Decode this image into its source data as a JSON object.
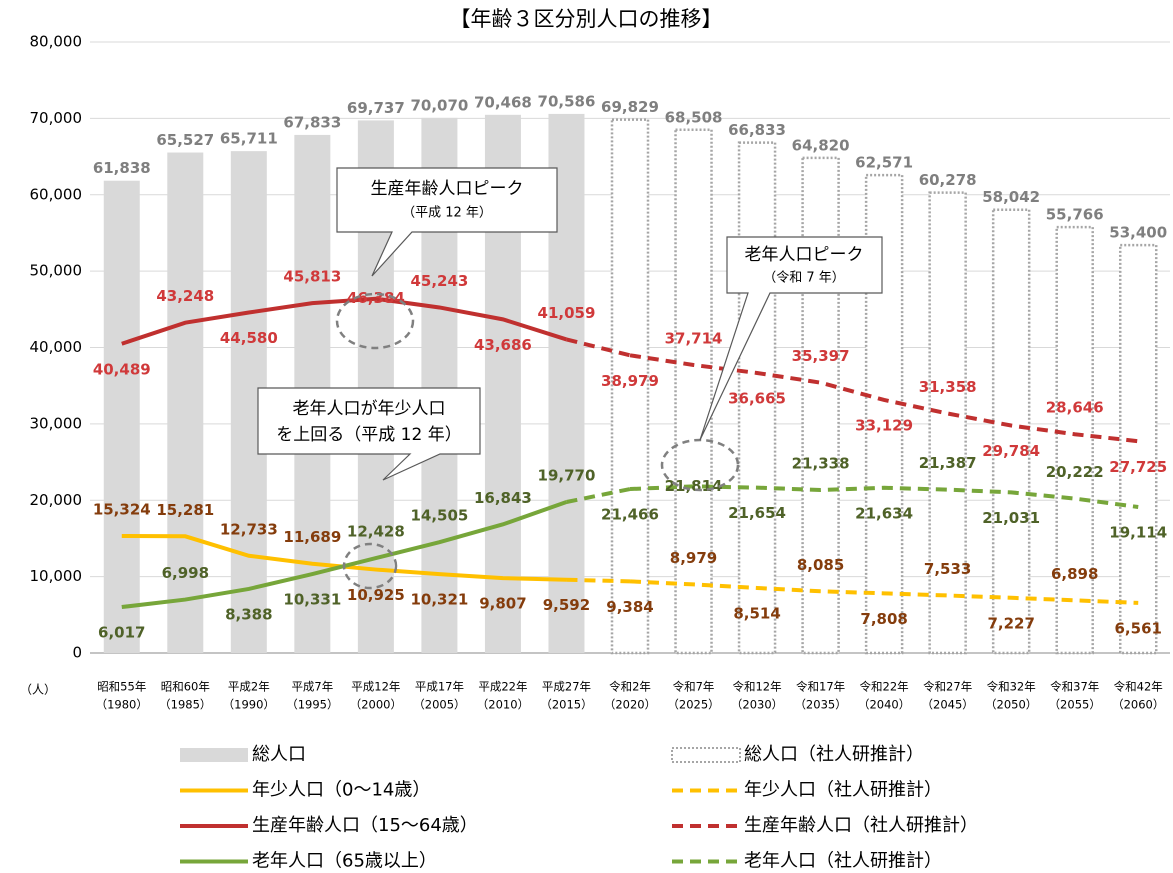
{
  "chart_data": {
    "type": "bar-line",
    "title": "【年齢３区分別人口の推移】",
    "y_unit": "（人）",
    "categories": [
      "昭和55年",
      "昭和60年",
      "平成2年",
      "平成7年",
      "平成12年",
      "平成17年",
      "平成22年",
      "平成27年",
      "令和2年",
      "令和7年",
      "令和12年",
      "令和17年",
      "令和22年",
      "令和27年",
      "令和32年",
      "令和37年",
      "令和42年"
    ],
    "category_sublabels": [
      "（1980）",
      "（1985）",
      "（1990）",
      "（1995）",
      "（2000）",
      "（2005）",
      "（2010）",
      "（2015）",
      "（2020）",
      "（2025）",
      "（2030）",
      "（2035）",
      "（2040）",
      "（2045）",
      "（2050）",
      "（2055）",
      "（2060）"
    ],
    "ylim": [
      0,
      80000
    ],
    "yticks": [
      0,
      {
        "value": 10000,
        "label": "10,000"
      },
      {
        "value": 20000,
        "label": "20,000"
      },
      {
        "value": 30000,
        "label": "30,000"
      },
      {
        "value": 40000,
        "label": "40,000"
      },
      {
        "value": 50000,
        "label": "50,000"
      },
      {
        "value": 60000,
        "label": "60,000"
      },
      {
        "value": 70000,
        "label": "70,000"
      },
      {
        "value": 80000,
        "label": "80,000"
      }
    ],
    "series": [
      {
        "name": "総人口",
        "kind": "bar",
        "dashed": false,
        "color": "#d9d9d9",
        "label_color": "#7f7f7f",
        "values": [
          61838,
          65527,
          65711,
          67833,
          69737,
          70070,
          70468,
          70586,
          null,
          null,
          null,
          null,
          null,
          null,
          null,
          null,
          null
        ],
        "value_labels": [
          "61,838",
          "65,527",
          "65,711",
          "67,833",
          "69,737",
          "70,070",
          "70,468",
          "70,586",
          null,
          null,
          null,
          null,
          null,
          null,
          null,
          null,
          null
        ]
      },
      {
        "name": "総人口（社人研推計）",
        "kind": "bar",
        "dashed": true,
        "color": "#a6a6a6",
        "label_color": "#7f7f7f",
        "values": [
          null,
          null,
          null,
          null,
          null,
          null,
          null,
          null,
          69829,
          68508,
          66833,
          64820,
          62571,
          60278,
          58042,
          55766,
          53400
        ],
        "value_labels": [
          null,
          null,
          null,
          null,
          null,
          null,
          null,
          null,
          "69,829",
          "68,508",
          "66,833",
          "64,820",
          "62,571",
          "60,278",
          "58,042",
          "55,766",
          "53,400"
        ]
      },
      {
        "name": "年少人口（0～14歳）",
        "kind": "line",
        "dashed": false,
        "color": "#ffc000",
        "label_color": "#843c0c",
        "values": [
          15324,
          15281,
          12733,
          11689,
          10925,
          10321,
          9807,
          9592,
          null,
          null,
          null,
          null,
          null,
          null,
          null,
          null,
          null
        ],
        "value_labels": [
          "15,324",
          "15,281",
          "12,733",
          "11,689",
          "10,925",
          "10,321",
          "9,807",
          "9,592",
          null,
          null,
          null,
          null,
          null,
          null,
          null,
          null,
          null
        ]
      },
      {
        "name": "年少人口（社人研推計）",
        "kind": "line",
        "dashed": true,
        "color": "#ffc000",
        "label_color": "#843c0c",
        "values": [
          null,
          null,
          null,
          null,
          null,
          null,
          null,
          null,
          9384,
          8979,
          8514,
          8085,
          7808,
          7533,
          7227,
          6898,
          6561
        ],
        "value_labels": [
          null,
          null,
          null,
          null,
          null,
          null,
          null,
          null,
          "9,384",
          "8,979",
          "8,514",
          "8,085",
          "7,808",
          "7,533",
          "7,227",
          "6,898",
          "6,561"
        ]
      },
      {
        "name": "生産年齢人口（15～64歳）",
        "kind": "line",
        "dashed": false,
        "color": "#c0302f",
        "label_color": "#d0393a",
        "values": [
          40489,
          43248,
          44580,
          45813,
          46384,
          45243,
          43686,
          41059,
          null,
          null,
          null,
          null,
          null,
          null,
          null,
          null,
          null
        ],
        "value_labels": [
          "40,489",
          "43,248",
          "44,580",
          "45,813",
          "46,384",
          "45,243",
          "43,686",
          "41,059",
          null,
          null,
          null,
          null,
          null,
          null,
          null,
          null,
          null
        ]
      },
      {
        "name": "生産年齢人口（社人研推計）",
        "kind": "line",
        "dashed": true,
        "color": "#c0302f",
        "label_color": "#d0393a",
        "values": [
          null,
          null,
          null,
          null,
          null,
          null,
          null,
          null,
          38979,
          37714,
          36665,
          35397,
          33129,
          31358,
          29784,
          28646,
          27725
        ],
        "value_labels": [
          null,
          null,
          null,
          null,
          null,
          null,
          null,
          null,
          "38,979",
          "37,714",
          "36,665",
          "35,397",
          "33,129",
          "31,358",
          "29,784",
          "28,646",
          "27,725"
        ]
      },
      {
        "name": "老年人口（65歳以上）",
        "kind": "line",
        "dashed": false,
        "color": "#77a63a",
        "label_color": "#4f6228",
        "values": [
          6017,
          6998,
          8388,
          10331,
          12428,
          14505,
          16843,
          19770,
          null,
          null,
          null,
          null,
          null,
          null,
          null,
          null,
          null
        ],
        "value_labels": [
          "6,017",
          "6,998",
          "8,388",
          "10,331",
          "12,428",
          "14,505",
          "16,843",
          "19,770",
          null,
          null,
          null,
          null,
          null,
          null,
          null,
          null,
          null
        ]
      },
      {
        "name": "老年人口（社人研推計）",
        "kind": "line",
        "dashed": true,
        "color": "#77a63a",
        "label_color": "#4f6228",
        "values": [
          null,
          null,
          null,
          null,
          null,
          null,
          null,
          null,
          21466,
          21814,
          21654,
          21338,
          21634,
          21387,
          21031,
          20222,
          19114
        ],
        "value_labels": [
          null,
          null,
          null,
          null,
          null,
          null,
          null,
          null,
          "21,466",
          "21,814",
          "21,654",
          "21,338",
          "21,634",
          "21,387",
          "21,031",
          "20,222",
          "19,114"
        ]
      }
    ],
    "annotations": [
      {
        "lines": [
          "生産年齢人口ピーク",
          "（平成 12 年）"
        ]
      },
      {
        "lines": [
          "老年人口ピーク",
          "（令和 7 年）"
        ]
      },
      {
        "lines": [
          "老年人口が年少人口",
          "を上回る（平成 12 年）"
        ]
      }
    ]
  }
}
